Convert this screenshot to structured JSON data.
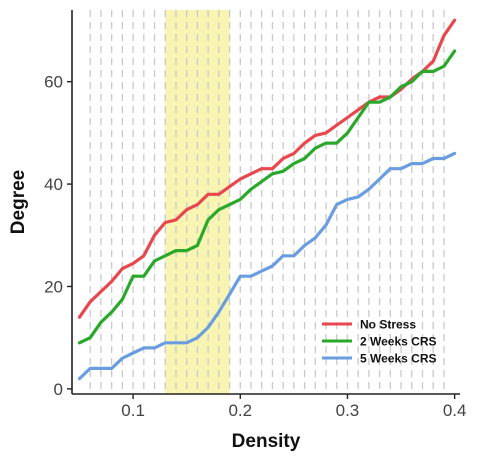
{
  "chart_data": {
    "type": "line",
    "xlabel": "Density",
    "ylabel": "Degree",
    "xlim": [
      0.043,
      0.405
    ],
    "ylim": [
      -1,
      74
    ],
    "x_ticks": [
      0.1,
      0.2,
      0.3,
      0.4
    ],
    "x_tick_labels": [
      "0.1",
      "0.2",
      "0.3",
      "0.4"
    ],
    "y_ticks": [
      0,
      20,
      40,
      60
    ],
    "y_tick_labels": [
      "0",
      "20",
      "40",
      "60"
    ],
    "grid": false,
    "highlight_band": {
      "x_start": 0.13,
      "x_end": 0.19,
      "color": "#f7f3a6"
    },
    "vertical_dashed_lines_x": [
      0.06,
      0.07,
      0.08,
      0.09,
      0.1,
      0.11,
      0.12,
      0.13,
      0.14,
      0.15,
      0.16,
      0.17,
      0.18,
      0.19,
      0.2,
      0.21,
      0.22,
      0.23,
      0.24,
      0.25,
      0.26,
      0.27,
      0.28,
      0.29,
      0.3,
      0.31,
      0.32,
      0.33,
      0.34,
      0.35,
      0.36,
      0.37,
      0.38,
      0.39
    ],
    "legend_position": "bottom-right",
    "x": [
      0.05,
      0.06,
      0.07,
      0.08,
      0.09,
      0.1,
      0.11,
      0.12,
      0.13,
      0.14,
      0.15,
      0.16,
      0.17,
      0.18,
      0.19,
      0.2,
      0.21,
      0.22,
      0.23,
      0.24,
      0.25,
      0.26,
      0.27,
      0.28,
      0.29,
      0.3,
      0.31,
      0.32,
      0.33,
      0.34,
      0.35,
      0.36,
      0.37,
      0.38,
      0.39,
      0.4
    ],
    "series": [
      {
        "name": "No Stress",
        "color": "#e8474d",
        "values": [
          14,
          17,
          19,
          21,
          23.5,
          24.5,
          26,
          30,
          32.5,
          33,
          35,
          36,
          38,
          38,
          39.5,
          41,
          42,
          43,
          43,
          45,
          46,
          48,
          49.5,
          50,
          51.5,
          53,
          54.5,
          56,
          57,
          57,
          58.5,
          60.5,
          62,
          64,
          69,
          72
        ]
      },
      {
        "name": "2 Weeks CRS",
        "color": "#2aa82a",
        "values": [
          9,
          10,
          13,
          15,
          17.5,
          22,
          22,
          25,
          26,
          27,
          27,
          28,
          33,
          35,
          36,
          37,
          39,
          40.5,
          42,
          42.5,
          44,
          45,
          47,
          48,
          48,
          50,
          53,
          56,
          56,
          57,
          59,
          60,
          62,
          62,
          63,
          66
        ]
      },
      {
        "name": "5 Weeks CRS",
        "color": "#6a9de0",
        "values": [
          2,
          4,
          4,
          4,
          6,
          7,
          8,
          8,
          9,
          9,
          9,
          10,
          12,
          15,
          18.5,
          22,
          22,
          23,
          24,
          26,
          26,
          28,
          29.5,
          32,
          36,
          37,
          37.5,
          39,
          41,
          43,
          43,
          44,
          44,
          45,
          45,
          46
        ]
      }
    ]
  }
}
